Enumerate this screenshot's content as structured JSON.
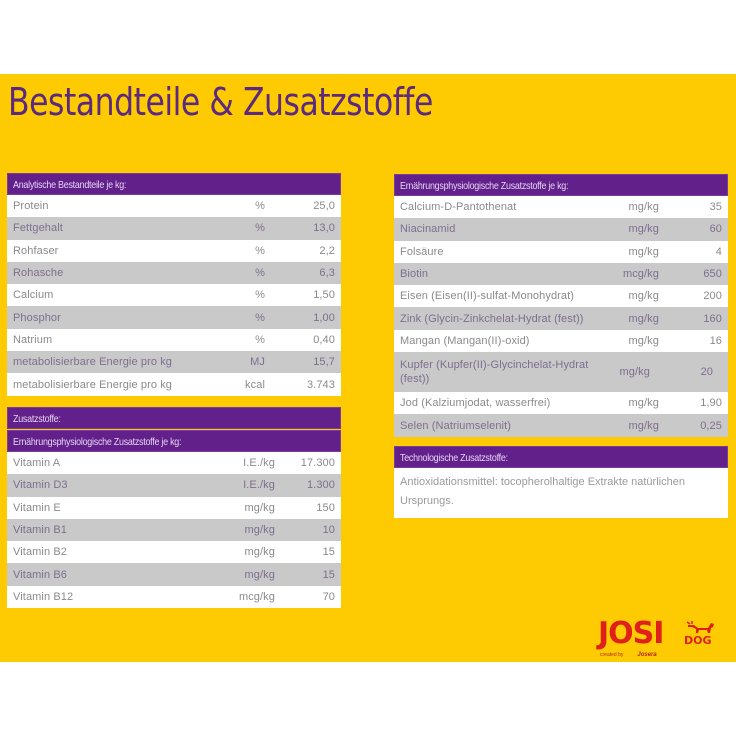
{
  "page": {
    "title": "Bestandteile & Zusatzstoffe",
    "colors": {
      "background": "#fecb02",
      "header_purple": "#62218a",
      "title_purple": "#5b2a7e",
      "row_gray": "#c9c9c9",
      "logo_red": "#e0201b"
    }
  },
  "analytical": {
    "header": "Analytische Bestandteile je kg:",
    "rows": [
      {
        "name": "Protein",
        "unit": "%",
        "value": "25,0"
      },
      {
        "name": "Fettgehalt",
        "unit": "%",
        "value": "13,0"
      },
      {
        "name": "Rohfaser",
        "unit": "%",
        "value": "2,2"
      },
      {
        "name": "Rohasche",
        "unit": "%",
        "value": "6,3"
      },
      {
        "name": "Calcium",
        "unit": "%",
        "value": "1,50"
      },
      {
        "name": "Phosphor",
        "unit": "%",
        "value": "1,00"
      },
      {
        "name": "Natrium",
        "unit": "%",
        "value": "0,40"
      },
      {
        "name": "metabolisierbare Energie pro kg",
        "unit": "MJ",
        "value": "15,7"
      },
      {
        "name": "metabolisierbare Energie pro kg",
        "unit": "kcal",
        "value": "3.743"
      }
    ]
  },
  "additives": {
    "header": "Zusatzstoffe:",
    "subheader": "Ernährungsphysiologische Zusatzstoffe je kg:",
    "rows": [
      {
        "name": "Vitamin A",
        "unit": "I.E./kg",
        "value": "17.300"
      },
      {
        "name": "Vitamin D3",
        "unit": "I.E./kg",
        "value": "1.300"
      },
      {
        "name": "Vitamin E",
        "unit": "mg/kg",
        "value": "150"
      },
      {
        "name": "Vitamin B1",
        "unit": "mg/kg",
        "value": "10"
      },
      {
        "name": "Vitamin B2",
        "unit": "mg/kg",
        "value": "15"
      },
      {
        "name": "Vitamin B6",
        "unit": "mg/kg",
        "value": "15"
      },
      {
        "name": "Vitamin B12",
        "unit": "mcg/kg",
        "value": "70"
      }
    ]
  },
  "nutritional": {
    "header": "Ernährungsphysiologische Zusatzstoffe je kg:",
    "rows": [
      {
        "name": "Calcium-D-Pantothenat",
        "unit": "mg/kg",
        "value": "35"
      },
      {
        "name": "Niacinamid",
        "unit": "mg/kg",
        "value": "60"
      },
      {
        "name": "Folsäure",
        "unit": "mg/kg",
        "value": "4"
      },
      {
        "name": "Biotin",
        "unit": "mcg/kg",
        "value": "650"
      },
      {
        "name": "Eisen (Eisen(II)-sulfat-Monohydrat)",
        "unit": "mg/kg",
        "value": "200"
      },
      {
        "name": "Zink (Glycin-Zinkchelat-Hydrat (fest))",
        "unit": "mg/kg",
        "value": "160"
      },
      {
        "name": "Mangan (Mangan(II)-oxid)",
        "unit": "mg/kg",
        "value": "16"
      },
      {
        "name": "Kupfer (Kupfer(II)-Glycinchelat-Hydrat (fest))",
        "unit": "mg/kg",
        "value": "20"
      },
      {
        "name": "Jod (Kalziumjodat, wasserfrei)",
        "unit": "mg/kg",
        "value": "1,90"
      },
      {
        "name": "Selen (Natriumselenit)",
        "unit": "mg/kg",
        "value": "0,25"
      }
    ]
  },
  "technological": {
    "header": "Technologische Zusatzstoffe:",
    "text": "Antioxidationsmittel: tocopherolhaltige Extrakte natürlichen Ursprungs."
  },
  "logo": {
    "brand": "JOSI",
    "suffix": "DOG",
    "sub_small": "created by",
    "sub_brand": "Josera",
    "icon": "dog-icon"
  }
}
